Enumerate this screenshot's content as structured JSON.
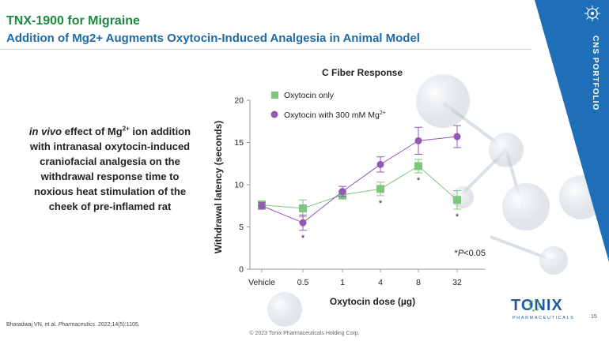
{
  "slide": {
    "title": "TNX-1900 for Migraine",
    "subtitle": "Addition of Mg2+ Augments Oxytocin-Induced Analgesia in Animal Model",
    "side_tab_label": "CNS PORTFOLIO",
    "description": {
      "italic_lead": "in vivo",
      "part1": " effect of Mg",
      "superscript": "2+",
      "part2": " ion addition with intranasal oxytocin-induced craniofacial analgesia on the withdrawal response time to noxious heat stimulation of the cheek of pre-inflamed rat"
    },
    "citation_author": "Bharadwaj VN, et al. ",
    "citation_journal": "Pharmaceutics",
    "citation_rest": ". 2022;14(5):1105.",
    "copyright": "© 2023 Tonix Pharmaceuticals Holding Corp.",
    "page_number": "15",
    "logo": {
      "wordmark": "TONIX",
      "tagline": "PHARMACEUTICALS"
    }
  },
  "colors": {
    "title_green": "#1b8a3e",
    "subtitle_blue": "#1e6aa8",
    "side_tab_blue": "#1e6fb8",
    "series_oxytocin": "#7dc67e",
    "series_mg": "#9458b4"
  },
  "chart_data": {
    "type": "line",
    "title": "C Fiber Response",
    "xlabel": "Oxytocin dose (µg)",
    "ylabel": "Withdrawal latency (seconds)",
    "categories": [
      "Vehicle",
      "0.5",
      "1",
      "4",
      "8",
      "32"
    ],
    "ylim": [
      0,
      20
    ],
    "yticks": [
      0,
      5,
      10,
      15,
      20
    ],
    "series": [
      {
        "name": "Oxytocin only",
        "marker": "square",
        "values": [
          7.6,
          7.2,
          8.8,
          9.5,
          12.2,
          8.2
        ],
        "errors": [
          0.5,
          1.0,
          0.5,
          0.8,
          0.8,
          1.1
        ]
      },
      {
        "name": "Oxytocin with 300 mM Mg",
        "name_superscript": "2+",
        "marker": "circle",
        "values": [
          7.5,
          5.5,
          9.2,
          12.4,
          15.2,
          15.7
        ],
        "errors": [
          0.4,
          0.9,
          0.6,
          0.9,
          1.6,
          1.3
        ]
      }
    ],
    "significance": {
      "oxytocin_only": [
        "",
        "",
        "",
        "*",
        "*",
        "*"
      ],
      "with_mg": [
        "",
        "*",
        "",
        "",
        "",
        ""
      ]
    },
    "significance_prefix": "*",
    "significance_italic": "P",
    "significance_suffix": "<0.05"
  }
}
